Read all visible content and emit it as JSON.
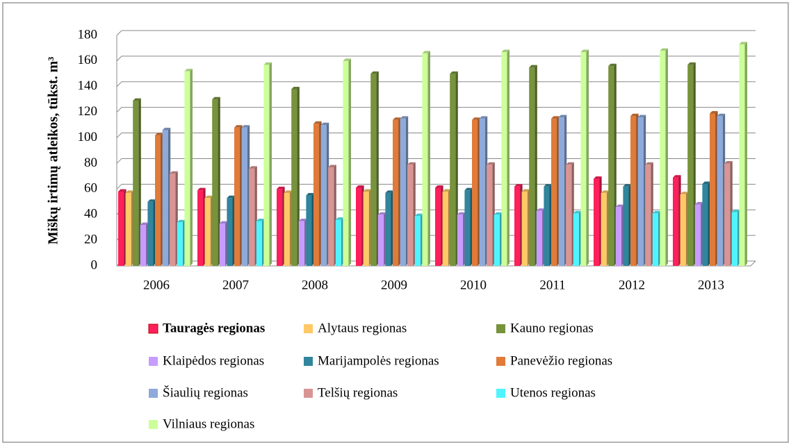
{
  "chart_data": {
    "type": "bar3d",
    "y_label": "Miškų irtimų atleikos, tūkst. m³",
    "categories": [
      "2006",
      "2007",
      "2008",
      "2009",
      "2010",
      "2011",
      "2012",
      "2013"
    ],
    "series": [
      {
        "name": "Tauragės regionas",
        "color": "#ff1f5a",
        "values": [
          58,
          59,
          60,
          61,
          61,
          62,
          68,
          69
        ]
      },
      {
        "name": "Alytaus regionas",
        "color": "#ffc966",
        "values": [
          57,
          53,
          57,
          58,
          58,
          58,
          57,
          56
        ]
      },
      {
        "name": "Kauno regionas",
        "color": "#77933c",
        "values": [
          129,
          130,
          138,
          150,
          150,
          155,
          156,
          157
        ]
      },
      {
        "name": "Klaipėdos regionas",
        "color": "#c89cff",
        "values": [
          32,
          33,
          35,
          40,
          40,
          43,
          46,
          48
        ]
      },
      {
        "name": "Marijampolės regionas",
        "color": "#31859c",
        "values": [
          50,
          53,
          55,
          57,
          59,
          62,
          62,
          64
        ]
      },
      {
        "name": "Panevėžio regionas",
        "color": "#e07b39",
        "values": [
          102,
          108,
          111,
          114,
          114,
          115,
          117,
          119
        ]
      },
      {
        "name": "Šiaulių regionas",
        "color": "#8eaadb",
        "values": [
          106,
          108,
          110,
          115,
          115,
          116,
          116,
          117
        ]
      },
      {
        "name": "Telšių regionas",
        "color": "#d99594",
        "values": [
          72,
          76,
          77,
          79,
          79,
          79,
          79,
          80
        ]
      },
      {
        "name": "Utenos regionas",
        "color": "#4ff4ff",
        "values": [
          34,
          35,
          36,
          39,
          40,
          41,
          41,
          42
        ]
      },
      {
        "name": "Vilniaus regionas",
        "color": "#ccff99",
        "values": [
          152,
          157,
          160,
          166,
          167,
          167,
          168,
          173
        ]
      }
    ],
    "ylim": [
      0,
      180
    ],
    "yticks": [
      0,
      20,
      40,
      60,
      80,
      100,
      120,
      140,
      160,
      180
    ],
    "grid": true,
    "legend": "bottom"
  }
}
